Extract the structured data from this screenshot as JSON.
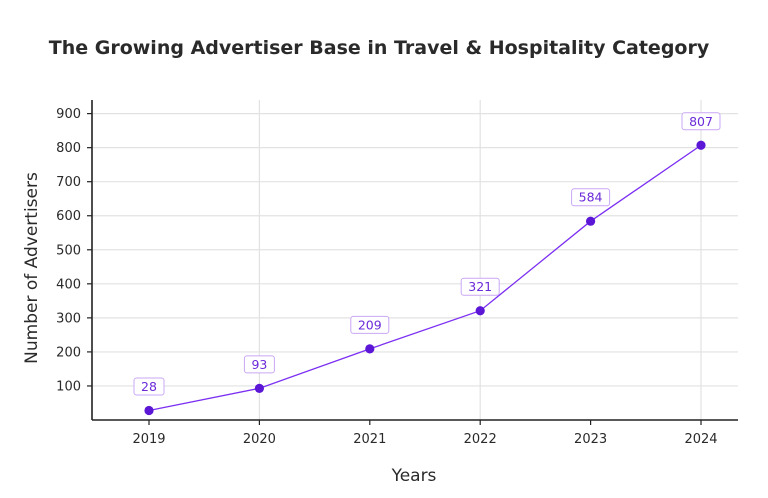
{
  "chart_data": {
    "type": "line",
    "title": "The Growing Advertiser Base in Travel & Hospitality Category",
    "xlabel": "Years",
    "ylabel": "Number of Advertisers",
    "categories": [
      "2019",
      "2020",
      "2021",
      "2022",
      "2023",
      "2024"
    ],
    "values": [
      28,
      93,
      209,
      321,
      584,
      807
    ],
    "data_labels": [
      "28",
      "93",
      "209",
      "321",
      "584",
      "807"
    ],
    "yticks": [
      100,
      200,
      300,
      400,
      500,
      600,
      700,
      800,
      900
    ],
    "ylim": [
      0,
      940
    ],
    "grid": true,
    "colors": {
      "line": "#7b2ff2",
      "marker": "#5b16d6",
      "label_text": "#6c2bd9",
      "label_border": "#c9a7f5",
      "grid": "#e2e2e2",
      "axis": "#222222",
      "text": "#2a2a2a"
    }
  }
}
